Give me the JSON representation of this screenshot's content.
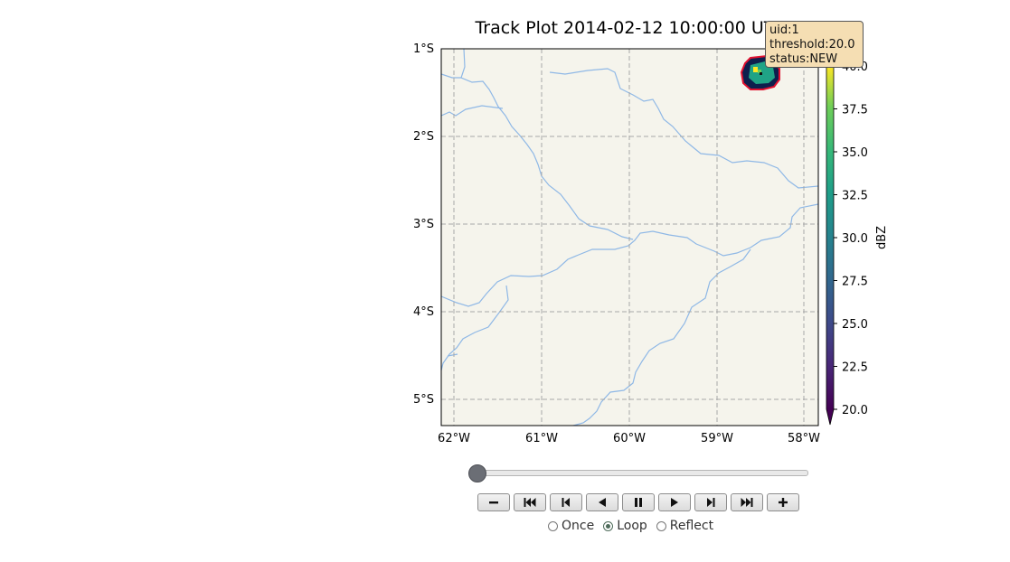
{
  "title": "Track Plot 2014-02-12 10:00:00 UTC",
  "map": {
    "lat_ticks": [
      "1°S",
      "2°S",
      "3°S",
      "4°S",
      "5°S"
    ],
    "lon_ticks": [
      "62°W",
      "61°W",
      "60°W",
      "59°W",
      "58°W"
    ],
    "extent": {
      "lon": [
        -62.15,
        -57.85
      ],
      "lat": [
        -5.3,
        -1.0
      ]
    },
    "gridlines": true,
    "colors": {
      "land": "#f5f4ec",
      "rivers": "#8fb8e6",
      "gridlines": "#a8a8a8",
      "storm_outline": "#e0102f"
    }
  },
  "colorbar": {
    "label": "dBZ",
    "ticks": [
      "40.0",
      "37.5",
      "35.0",
      "32.5",
      "30.0",
      "27.5",
      "25.0",
      "22.5",
      "20.0"
    ],
    "range": [
      20,
      40
    ],
    "colormap": "viridis"
  },
  "storm": {
    "uid": 1,
    "threshold": 20.0,
    "status": "NEW",
    "center": {
      "lon": -58.52,
      "lat": -1.27
    }
  },
  "tooltip": {
    "lines": [
      "uid:1",
      "threshold:20.0",
      "status:NEW"
    ]
  },
  "player": {
    "slider_fraction": 0.0,
    "buttons": [
      "decrease-speed",
      "first-frame",
      "previous-frame",
      "play-reverse",
      "pause",
      "play-forward",
      "next-frame",
      "last-frame",
      "increase-speed"
    ],
    "modes": [
      "Once",
      "Loop",
      "Reflect"
    ],
    "selected_mode": "Loop"
  }
}
